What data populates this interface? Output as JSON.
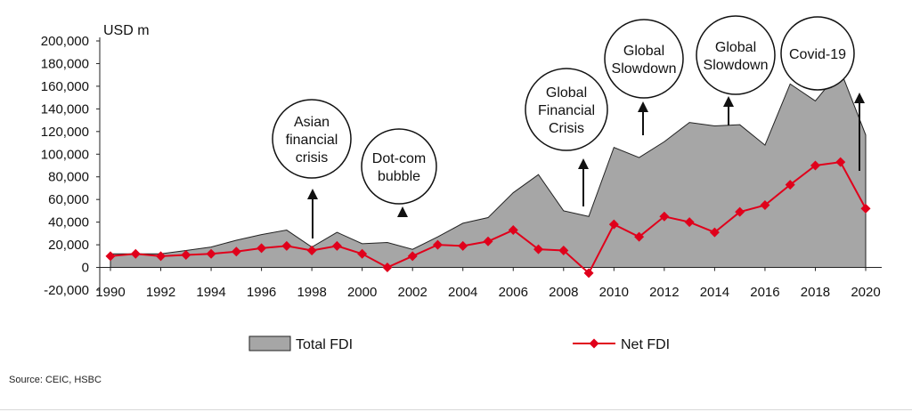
{
  "chart_data": {
    "type": "area+line",
    "unit_label": "USD m",
    "x": [
      1990,
      1991,
      1992,
      1993,
      1994,
      1995,
      1996,
      1997,
      1998,
      1999,
      2000,
      2001,
      2002,
      2003,
      2004,
      2005,
      2006,
      2007,
      2008,
      2009,
      2010,
      2011,
      2012,
      2013,
      2014,
      2015,
      2016,
      2017,
      2018,
      2019,
      2020
    ],
    "series": [
      {
        "name": "Total FDI",
        "kind": "area",
        "color": "#a6a6a6",
        "values": [
          12000,
          12000,
          12000,
          15000,
          18000,
          24000,
          29000,
          33000,
          18000,
          31000,
          21000,
          22000,
          16000,
          27000,
          39000,
          44000,
          66000,
          82000,
          50000,
          45000,
          106000,
          97000,
          111000,
          128000,
          125000,
          126000,
          108000,
          162000,
          147000,
          174000,
          117000
        ]
      },
      {
        "name": "Net FDI",
        "kind": "line",
        "color": "#e0001b",
        "values": [
          10000,
          12000,
          10000,
          11000,
          12000,
          14000,
          17000,
          19000,
          15000,
          19000,
          12000,
          0,
          10000,
          20000,
          19000,
          23000,
          33000,
          16000,
          15000,
          -5000,
          38000,
          27000,
          45000,
          40000,
          31000,
          49000,
          55000,
          73000,
          90000,
          93000,
          52000
        ]
      }
    ],
    "x_ticks": [
      "1990",
      "1992",
      "1994",
      "1996",
      "1998",
      "2000",
      "2002",
      "2004",
      "2006",
      "2008",
      "2010",
      "2012",
      "2014",
      "2016",
      "2018",
      "2020"
    ],
    "y_ticks": [
      "200,000",
      "180,000",
      "160,000",
      "140,000",
      "120,000",
      "100,000",
      "80,000",
      "60,000",
      "40,000",
      "20,000",
      "0",
      "-20,000"
    ],
    "ylim": [
      -20000,
      200000
    ],
    "legend": [
      {
        "label": "Total FDI"
      },
      {
        "label": "Net FDI"
      }
    ],
    "legend_position": "bottom",
    "annotations": [
      {
        "lines": [
          "Asian",
          "financial",
          "crisis"
        ],
        "year": 1998
      },
      {
        "lines": [
          "Dot-com",
          "bubble"
        ],
        "year": 2002
      },
      {
        "lines": [
          "Global",
          "Financial",
          "Crisis"
        ],
        "year": 2009
      },
      {
        "lines": [
          "Global",
          "Slowdown"
        ],
        "year": 2011
      },
      {
        "lines": [
          "Global",
          "Slowdown"
        ],
        "year": 2015
      },
      {
        "lines": [
          "Covid-19"
        ],
        "year": 2020
      }
    ]
  },
  "source": "Source: CEIC, HSBC"
}
